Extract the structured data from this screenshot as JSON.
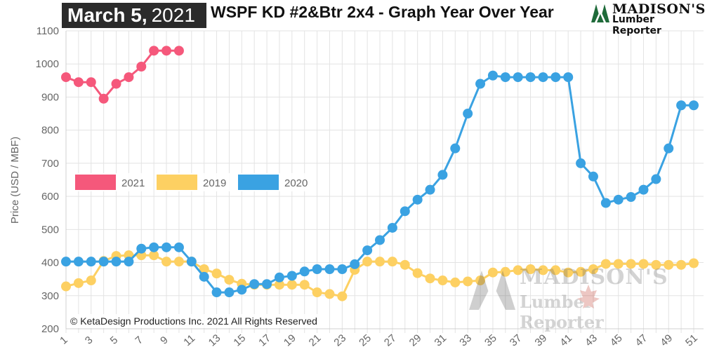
{
  "header": {
    "date_main": "March 5,",
    "date_year": "2021",
    "title": "WSPF KD #2&Btr 2x4 - Graph Year Over Year"
  },
  "logo": {
    "line1": "MADISON'S",
    "line2": "Lumber Reporter"
  },
  "watermark": {
    "line1": "MADISON'S",
    "line2": "Lumber Reporter"
  },
  "copyright": "© KetaDesign Productions Inc. 2021 All Rights Reserved",
  "colors": {
    "s2021": "#f5587b",
    "s2019": "#fdd062",
    "s2020": "#3aa2e2",
    "grid": "#e3e3e3"
  },
  "chart_data": {
    "type": "line",
    "ylabel": "Price (USD / MBF)",
    "ylim": [
      200,
      1100
    ],
    "yticks": [
      200,
      300,
      400,
      500,
      600,
      700,
      800,
      900,
      1000,
      1100
    ],
    "x_range": [
      1,
      51
    ],
    "xtick_labels": [
      "1",
      "3",
      "5",
      "7",
      "9",
      "11",
      "13",
      "15",
      "17",
      "19",
      "21",
      "23",
      "25",
      "27",
      "29",
      "31",
      "33",
      "35",
      "37",
      "39",
      "41",
      "43",
      "45",
      "47",
      "49",
      "51"
    ],
    "grid": true,
    "legend_placement": "middle-left",
    "series": [
      {
        "name": "2021",
        "color": "#f5587b",
        "x": [
          1,
          2,
          3,
          4,
          5,
          6,
          7,
          8,
          9,
          10
        ],
        "values": [
          960,
          945,
          945,
          895,
          940,
          960,
          992,
          1040,
          1040,
          1040
        ]
      },
      {
        "name": "2019",
        "color": "#fdd062",
        "x": [
          1,
          2,
          3,
          4,
          5,
          6,
          7,
          8,
          9,
          10,
          11,
          12,
          13,
          14,
          15,
          16,
          17,
          18,
          19,
          20,
          21,
          22,
          23,
          24,
          25,
          26,
          27,
          28,
          29,
          30,
          31,
          32,
          33,
          34,
          35,
          36,
          37,
          38,
          39,
          40,
          41,
          42,
          43,
          44,
          45,
          46,
          47,
          48,
          49,
          50,
          51
        ],
        "values": [
          328,
          338,
          346,
          405,
          420,
          422,
          422,
          422,
          403,
          403,
          403,
          380,
          367,
          348,
          336,
          333,
          333,
          333,
          333,
          333,
          310,
          305,
          298,
          378,
          403,
          403,
          403,
          393,
          368,
          352,
          346,
          340,
          343,
          346,
          370,
          372,
          377,
          380,
          377,
          377,
          370,
          372,
          380,
          396,
          396,
          396,
          396,
          393,
          393,
          393,
          398
        ]
      },
      {
        "name": "2020",
        "color": "#3aa2e2",
        "x": [
          1,
          2,
          3,
          4,
          5,
          6,
          7,
          8,
          9,
          10,
          11,
          12,
          13,
          14,
          15,
          16,
          17,
          18,
          19,
          20,
          21,
          22,
          23,
          24,
          25,
          26,
          27,
          28,
          29,
          30,
          31,
          32,
          33,
          34,
          35,
          36,
          37,
          38,
          39,
          40,
          41,
          42,
          43,
          44,
          45,
          46,
          47,
          48,
          49,
          50,
          51
        ],
        "values": [
          403,
          403,
          403,
          403,
          403,
          403,
          442,
          446,
          446,
          446,
          403,
          357,
          310,
          310,
          318,
          335,
          335,
          355,
          360,
          373,
          380,
          380,
          380,
          395,
          437,
          468,
          505,
          555,
          590,
          620,
          665,
          745,
          850,
          940,
          965,
          960,
          960,
          960,
          960,
          960,
          960,
          700,
          660,
          580,
          590,
          598,
          620,
          652,
          745,
          875,
          875
        ]
      }
    ]
  }
}
